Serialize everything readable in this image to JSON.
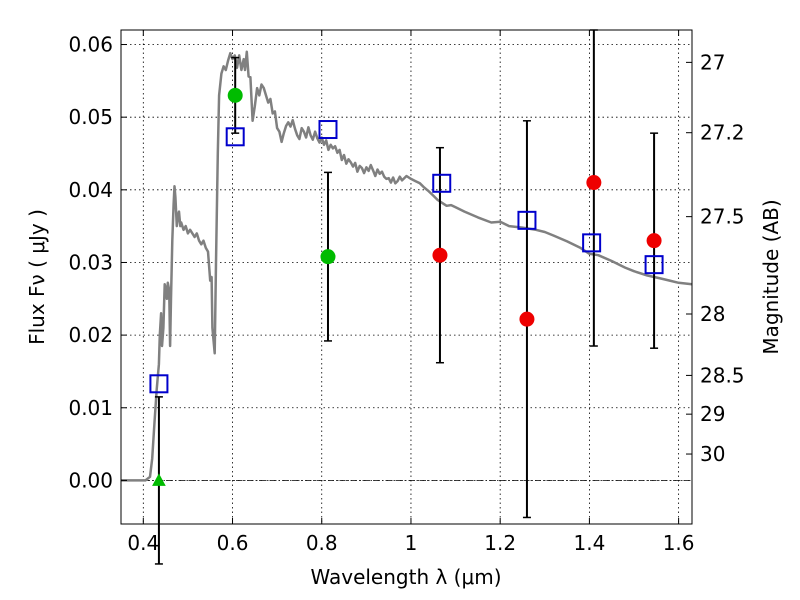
{
  "chart_data": {
    "type": "scatter",
    "title": "",
    "xlabel": "Wavelength  λ (μm)",
    "ylabel": "Flux  Fν  ( μJy )",
    "ylabel_right": "Magnitude (AB)",
    "xlim": [
      0.35,
      1.63
    ],
    "ylim": [
      -0.006,
      0.062
    ],
    "grid": true,
    "zero_line": true,
    "x_ticks": [
      {
        "value": 0.4,
        "label": "0.4"
      },
      {
        "value": 0.6,
        "label": "0.6"
      },
      {
        "value": 0.8,
        "label": "0.8"
      },
      {
        "value": 1.0,
        "label": "1"
      },
      {
        "value": 1.2,
        "label": "1.2"
      },
      {
        "value": 1.4,
        "label": "1.4"
      },
      {
        "value": 1.6,
        "label": "1.6"
      }
    ],
    "y_ticks": [
      {
        "value": 0.0,
        "label": "0.00"
      },
      {
        "value": 0.01,
        "label": "0.01"
      },
      {
        "value": 0.02,
        "label": "0.02"
      },
      {
        "value": 0.03,
        "label": "0.03"
      },
      {
        "value": 0.04,
        "label": "0.04"
      },
      {
        "value": 0.05,
        "label": "0.05"
      },
      {
        "value": 0.06,
        "label": "0.06"
      }
    ],
    "right_ticks": [
      {
        "mag": 27,
        "label": "27"
      },
      {
        "mag": 27.2,
        "label": "27.2"
      },
      {
        "mag": 27.5,
        "label": "27.5"
      },
      {
        "mag": 28,
        "label": "28"
      },
      {
        "mag": 28.5,
        "label": "28.5"
      },
      {
        "mag": 29,
        "label": "29"
      },
      {
        "mag": 30,
        "label": "30"
      }
    ],
    "sed_model": {
      "color": "#808080",
      "points": [
        [
          0.35,
          0.0
        ],
        [
          0.405,
          0.0
        ],
        [
          0.415,
          0.0005
        ],
        [
          0.42,
          0.003
        ],
        [
          0.425,
          0.008
        ],
        [
          0.43,
          0.0125
        ],
        [
          0.435,
          0.016
        ],
        [
          0.437,
          0.02
        ],
        [
          0.44,
          0.023
        ],
        [
          0.442,
          0.0185
        ],
        [
          0.445,
          0.021
        ],
        [
          0.448,
          0.027
        ],
        [
          0.45,
          0.0265
        ],
        [
          0.453,
          0.025
        ],
        [
          0.455,
          0.0272
        ],
        [
          0.458,
          0.0262
        ],
        [
          0.46,
          0.0185
        ],
        [
          0.462,
          0.025
        ],
        [
          0.465,
          0.033
        ],
        [
          0.468,
          0.038
        ],
        [
          0.47,
          0.0405
        ],
        [
          0.472,
          0.039
        ],
        [
          0.475,
          0.035
        ],
        [
          0.478,
          0.0365
        ],
        [
          0.48,
          0.037
        ],
        [
          0.483,
          0.035
        ],
        [
          0.485,
          0.0355
        ],
        [
          0.49,
          0.0345
        ],
        [
          0.495,
          0.035
        ],
        [
          0.5,
          0.034
        ],
        [
          0.505,
          0.0345
        ],
        [
          0.51,
          0.034
        ],
        [
          0.515,
          0.0335
        ],
        [
          0.52,
          0.034
        ],
        [
          0.525,
          0.033
        ],
        [
          0.53,
          0.0325
        ],
        [
          0.535,
          0.033
        ],
        [
          0.54,
          0.032
        ],
        [
          0.545,
          0.0315
        ],
        [
          0.55,
          0.0275
        ],
        [
          0.553,
          0.028
        ],
        [
          0.555,
          0.021
        ],
        [
          0.56,
          0.0175
        ],
        [
          0.563,
          0.03
        ],
        [
          0.567,
          0.045
        ],
        [
          0.57,
          0.053
        ],
        [
          0.575,
          0.056
        ],
        [
          0.58,
          0.057
        ],
        [
          0.585,
          0.0565
        ],
        [
          0.59,
          0.0578
        ],
        [
          0.595,
          0.0588
        ],
        [
          0.6,
          0.058
        ],
        [
          0.605,
          0.0585
        ],
        [
          0.61,
          0.0568
        ],
        [
          0.615,
          0.0585
        ],
        [
          0.62,
          0.0565
        ],
        [
          0.625,
          0.058
        ],
        [
          0.628,
          0.0565
        ],
        [
          0.632,
          0.059
        ],
        [
          0.636,
          0.0556
        ],
        [
          0.64,
          0.0555
        ],
        [
          0.645,
          0.0495
        ],
        [
          0.65,
          0.0515
        ],
        [
          0.655,
          0.054
        ],
        [
          0.66,
          0.053
        ],
        [
          0.665,
          0.0545
        ],
        [
          0.67,
          0.054
        ],
        [
          0.675,
          0.053
        ],
        [
          0.68,
          0.052
        ],
        [
          0.685,
          0.0525
        ],
        [
          0.69,
          0.0505
        ],
        [
          0.695,
          0.0508
        ],
        [
          0.7,
          0.0485
        ],
        [
          0.705,
          0.048
        ],
        [
          0.71,
          0.0466
        ],
        [
          0.715,
          0.0478
        ],
        [
          0.72,
          0.0488
        ],
        [
          0.725,
          0.0493
        ],
        [
          0.73,
          0.0487
        ],
        [
          0.735,
          0.0496
        ],
        [
          0.74,
          0.0484
        ],
        [
          0.745,
          0.0475
        ],
        [
          0.75,
          0.047
        ],
        [
          0.755,
          0.0485
        ],
        [
          0.76,
          0.048
        ],
        [
          0.765,
          0.0472
        ],
        [
          0.77,
          0.0486
        ],
        [
          0.775,
          0.0475
        ],
        [
          0.78,
          0.0469
        ],
        [
          0.785,
          0.048
        ],
        [
          0.79,
          0.0471
        ],
        [
          0.795,
          0.0465
        ],
        [
          0.8,
          0.0472
        ],
        [
          0.805,
          0.0462
        ],
        [
          0.81,
          0.0468
        ],
        [
          0.815,
          0.0455
        ],
        [
          0.82,
          0.0462
        ],
        [
          0.825,
          0.0457
        ],
        [
          0.83,
          0.046
        ],
        [
          0.835,
          0.0451
        ],
        [
          0.84,
          0.0455
        ],
        [
          0.845,
          0.0441
        ],
        [
          0.85,
          0.0448
        ],
        [
          0.855,
          0.0436
        ],
        [
          0.86,
          0.0442
        ],
        [
          0.865,
          0.0438
        ],
        [
          0.87,
          0.0432
        ],
        [
          0.875,
          0.0437
        ],
        [
          0.88,
          0.0425
        ],
        [
          0.885,
          0.0433
        ],
        [
          0.89,
          0.043
        ],
        [
          0.895,
          0.0423
        ],
        [
          0.9,
          0.0431
        ],
        [
          0.905,
          0.0426
        ],
        [
          0.91,
          0.0434
        ],
        [
          0.915,
          0.0427
        ],
        [
          0.92,
          0.0419
        ],
        [
          0.925,
          0.0428
        ],
        [
          0.93,
          0.0422
        ],
        [
          0.935,
          0.0425
        ],
        [
          0.94,
          0.0418
        ],
        [
          0.945,
          0.0415
        ],
        [
          0.95,
          0.0416
        ],
        [
          0.955,
          0.041
        ],
        [
          0.96,
          0.0417
        ],
        [
          0.965,
          0.0409
        ],
        [
          0.97,
          0.0412
        ],
        [
          0.975,
          0.0418
        ],
        [
          0.98,
          0.0413
        ],
        [
          0.99,
          0.0419
        ],
        [
          1.0,
          0.0415
        ],
        [
          1.01,
          0.0412
        ],
        [
          1.02,
          0.0409
        ],
        [
          1.03,
          0.0403
        ],
        [
          1.04,
          0.0398
        ],
        [
          1.05,
          0.0392
        ],
        [
          1.06,
          0.0386
        ],
        [
          1.07,
          0.0382
        ],
        [
          1.08,
          0.0378
        ],
        [
          1.09,
          0.0379
        ],
        [
          1.1,
          0.0376
        ],
        [
          1.12,
          0.037
        ],
        [
          1.15,
          0.0362
        ],
        [
          1.18,
          0.0355
        ],
        [
          1.2,
          0.0356
        ],
        [
          1.22,
          0.035
        ],
        [
          1.25,
          0.0348
        ],
        [
          1.28,
          0.0345
        ],
        [
          1.3,
          0.0342
        ],
        [
          1.32,
          0.0337
        ],
        [
          1.35,
          0.0329
        ],
        [
          1.38,
          0.032
        ],
        [
          1.4,
          0.0312
        ],
        [
          1.42,
          0.031
        ],
        [
          1.45,
          0.0302
        ],
        [
          1.48,
          0.0293
        ],
        [
          1.5,
          0.0288
        ],
        [
          1.53,
          0.0282
        ],
        [
          1.56,
          0.0278
        ],
        [
          1.58,
          0.0275
        ],
        [
          1.6,
          0.0272
        ],
        [
          1.63,
          0.027
        ]
      ]
    },
    "model_flux": {
      "marker": "open-square",
      "color": "#0000cc",
      "points": [
        {
          "x": 0.435,
          "y": 0.0133
        },
        {
          "x": 0.606,
          "y": 0.0473
        },
        {
          "x": 0.814,
          "y": 0.0483
        },
        {
          "x": 1.069,
          "y": 0.0409
        },
        {
          "x": 1.26,
          "y": 0.0358
        },
        {
          "x": 1.405,
          "y": 0.0327
        },
        {
          "x": 1.545,
          "y": 0.0297
        }
      ]
    },
    "hst_acs_observed": {
      "color": "#00bb00",
      "points": [
        {
          "x": 0.435,
          "y": 0.0,
          "yerr": 0.0115,
          "marker": "triangle-up"
        },
        {
          "x": 0.606,
          "y": 0.053,
          "yerr": 0.0052,
          "marker": "circle"
        },
        {
          "x": 0.814,
          "y": 0.0308,
          "yerr": 0.0116,
          "marker": "circle"
        }
      ]
    },
    "hst_wfc3_observed": {
      "color": "#ee0000",
      "marker": "circle",
      "points": [
        {
          "x": 1.065,
          "y": 0.031,
          "yerr": 0.0148
        },
        {
          "x": 1.26,
          "y": 0.0222,
          "yerr": 0.0273
        },
        {
          "x": 1.41,
          "y": 0.041,
          "yerr_low": 0.0225,
          "yerr_high": 0.021
        },
        {
          "x": 1.545,
          "y": 0.033,
          "yerr": 0.0148
        }
      ]
    },
    "errorbar_color": "#000000"
  }
}
